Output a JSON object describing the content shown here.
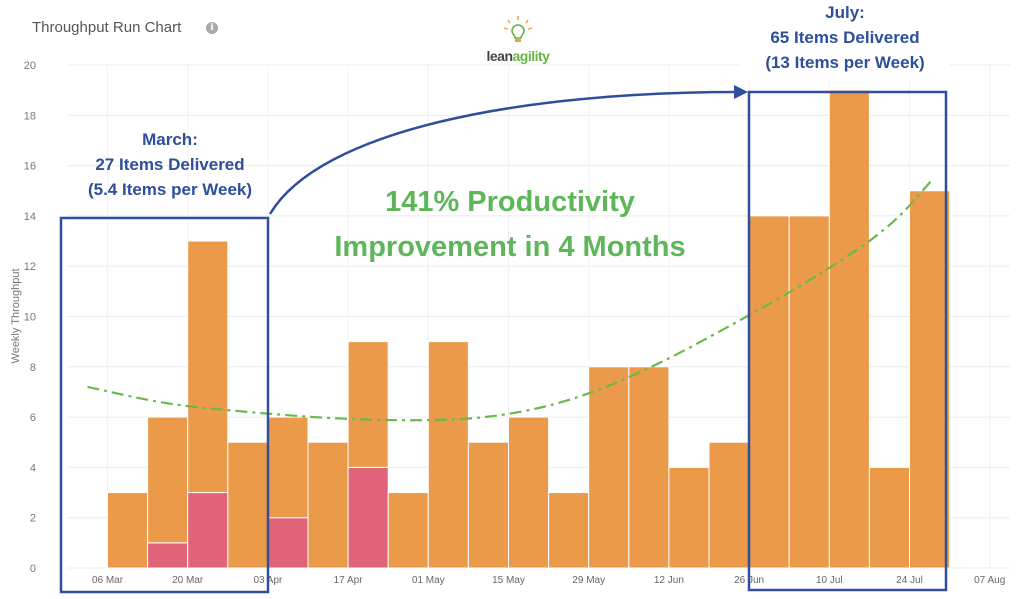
{
  "title": "Throughput Run Chart",
  "info_icon": "info-icon",
  "logo": {
    "text_dark": "lean",
    "text_accent": "agility",
    "icon": "lightbulb-icon",
    "accent_color": "#6ab344"
  },
  "colors": {
    "bar": "#eb9a49",
    "bar_highlight": "#e06378",
    "trend": "#6cb84a",
    "annotation": "#2f4f9a",
    "headline": "#5fb65a"
  },
  "chart_data": {
    "type": "bar",
    "ylabel": "Weekly Throughput",
    "xlabel": "",
    "ylim": [
      0,
      20
    ],
    "y_ticks": [
      0,
      2,
      4,
      6,
      8,
      10,
      12,
      14,
      16,
      18,
      20
    ],
    "x_tick_labels": [
      "06 Mar",
      "20 Mar",
      "03 Apr",
      "17 Apr",
      "01 May",
      "15 May",
      "29 May",
      "12 Jun",
      "26 Jun",
      "10 Jul",
      "24 Jul",
      "07 Aug"
    ],
    "categories": [
      "06 Mar",
      "13 Mar",
      "20 Mar",
      "27 Mar",
      "03 Apr",
      "10 Apr",
      "17 Apr",
      "24 Apr",
      "01 May",
      "08 May",
      "15 May",
      "22 May",
      "29 May",
      "05 Jun",
      "12 Jun",
      "19 Jun",
      "26 Jun",
      "03 Jul",
      "10 Jul",
      "17 Jul",
      "24 Jul"
    ],
    "series": [
      {
        "values": [
          3,
          5,
          10,
          5,
          4,
          5,
          5,
          3,
          9,
          5,
          6,
          3,
          8,
          8,
          4,
          5,
          14,
          14,
          19,
          4,
          15
        ]
      },
      {
        "values": [
          0,
          1,
          3,
          0,
          2,
          0,
          4,
          0,
          0,
          0,
          0,
          0,
          0,
          0,
          0,
          0,
          0,
          0,
          0,
          0,
          0
        ]
      }
    ],
    "trendline": {
      "type": "dash-dot",
      "points": [
        [
          -0.5,
          7.2
        ],
        [
          1.5,
          6.5
        ],
        [
          3.5,
          6.2
        ],
        [
          5.5,
          5.95
        ],
        [
          7.5,
          5.85
        ],
        [
          9.5,
          5.95
        ],
        [
          11.5,
          6.6
        ],
        [
          13.5,
          7.9
        ],
        [
          15.5,
          9.6
        ],
        [
          17.5,
          11.4
        ],
        [
          19.5,
          13.5
        ],
        [
          20.6,
          15.5
        ]
      ]
    },
    "grid": true
  },
  "annotations": {
    "march": [
      "March:",
      "27 Items Delivered",
      "(5.4 Items per Week)"
    ],
    "july": [
      "July:",
      "65 Items Delivered",
      "(13 Items per Week)"
    ],
    "headline": [
      "141% Productivity",
      "Improvement in 4 Months"
    ]
  }
}
